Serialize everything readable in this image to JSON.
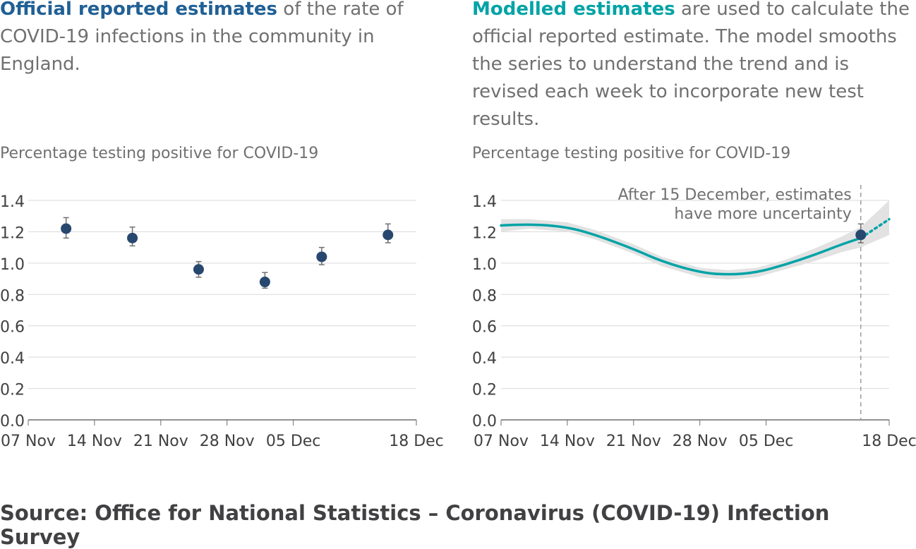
{
  "intro": {
    "left_lead": "Official reported estimates",
    "left_rest": " of the rate of COVID-19 infections in the community in England.",
    "right_lead": "Modelled estimates",
    "right_rest": " are used to calculate the official reported estimate. The model smooths the series to understand the trend and is revised each week to incorporate new test results."
  },
  "source": "Source: Office for National Statistics – Coronavirus (COVID-19) Infection Survey",
  "colors": {
    "official": "#206095",
    "modelled": "#00a3a6",
    "band": "#e2e2e3",
    "grid": "#d9d9d9",
    "error_bar": "#707071",
    "axis_text": "#414042"
  },
  "chart_data": [
    {
      "type": "scatter",
      "ylabel": "Percentage testing positive for COVID-19",
      "ylim": [
        0,
        1.4
      ],
      "yticks": [
        "0.0",
        "0.2",
        "0.4",
        "0.6",
        "0.8",
        "1.0",
        "1.2",
        "1.4"
      ],
      "xlim": [
        "2021-11-07",
        "2021-12-18"
      ],
      "xtick_dates": [
        "2021-11-07",
        "2021-11-14",
        "2021-11-21",
        "2021-11-28",
        "2021-12-05",
        "2021-12-18"
      ],
      "xtick_labels": [
        "07 Nov",
        "14 Nov",
        "21 Nov",
        "28 Nov",
        "05 Dec",
        "18 Dec"
      ],
      "grid": true,
      "series": [
        {
          "points": [
            {
              "x": "2021-11-11",
              "y": 1.22,
              "low": 1.16,
              "high": 1.29
            },
            {
              "x": "2021-11-18",
              "y": 1.16,
              "low": 1.11,
              "high": 1.23
            },
            {
              "x": "2021-11-25",
              "y": 0.96,
              "low": 0.91,
              "high": 1.01
            },
            {
              "x": "2021-12-02",
              "y": 0.88,
              "low": 0.84,
              "high": 0.94
            },
            {
              "x": "2021-12-08",
              "y": 1.04,
              "low": 0.99,
              "high": 1.1
            },
            {
              "x": "2021-12-15",
              "y": 1.18,
              "low": 1.13,
              "high": 1.25
            }
          ]
        }
      ]
    },
    {
      "type": "line",
      "ylabel": "Percentage testing positive for COVID-19",
      "ylim": [
        0,
        1.4
      ],
      "yticks": [
        "0.0",
        "0.2",
        "0.4",
        "0.6",
        "0.8",
        "1.0",
        "1.2",
        "1.4"
      ],
      "xlim": [
        "2021-11-07",
        "2021-12-18"
      ],
      "xtick_dates": [
        "2021-11-07",
        "2021-11-14",
        "2021-11-21",
        "2021-11-28",
        "2021-12-05",
        "2021-12-18"
      ],
      "xtick_labels": [
        "07 Nov",
        "14 Nov",
        "21 Nov",
        "28 Nov",
        "05 Dec",
        "18 Dec"
      ],
      "grid": true,
      "series": [
        {
          "points": [
            {
              "x": "2021-11-07",
              "y": 1.24,
              "low": 1.2,
              "high": 1.28
            },
            {
              "x": "2021-11-10",
              "y": 1.25,
              "low": 1.22,
              "high": 1.28
            },
            {
              "x": "2021-11-14",
              "y": 1.23,
              "low": 1.2,
              "high": 1.26
            },
            {
              "x": "2021-11-17",
              "y": 1.18,
              "low": 1.15,
              "high": 1.21
            },
            {
              "x": "2021-11-21",
              "y": 1.09,
              "low": 1.06,
              "high": 1.12
            },
            {
              "x": "2021-11-24",
              "y": 1.01,
              "low": 0.98,
              "high": 1.04
            },
            {
              "x": "2021-11-28",
              "y": 0.94,
              "low": 0.91,
              "high": 0.97
            },
            {
              "x": "2021-12-01",
              "y": 0.925,
              "low": 0.895,
              "high": 0.955
            },
            {
              "x": "2021-12-04",
              "y": 0.94,
              "low": 0.91,
              "high": 0.97
            },
            {
              "x": "2021-12-07",
              "y": 0.99,
              "low": 0.96,
              "high": 1.02
            },
            {
              "x": "2021-12-10",
              "y": 1.05,
              "low": 1.01,
              "high": 1.09
            },
            {
              "x": "2021-12-13",
              "y": 1.12,
              "low": 1.07,
              "high": 1.17
            },
            {
              "x": "2021-12-15",
              "y": 1.16,
              "low": 1.1,
              "high": 1.23
            }
          ],
          "projection": [
            {
              "x": "2021-12-15",
              "y": 1.16,
              "low": 1.1,
              "high": 1.23
            },
            {
              "x": "2021-12-18",
              "y": 1.28,
              "low": 1.18,
              "high": 1.4
            }
          ]
        }
      ],
      "official_point": {
        "x": "2021-12-15",
        "y": 1.18,
        "low": 1.13,
        "high": 1.25
      },
      "annotation": {
        "x": "2021-12-15",
        "lines": [
          "After 15 December, estimates",
          "have more uncertainty"
        ]
      }
    }
  ]
}
